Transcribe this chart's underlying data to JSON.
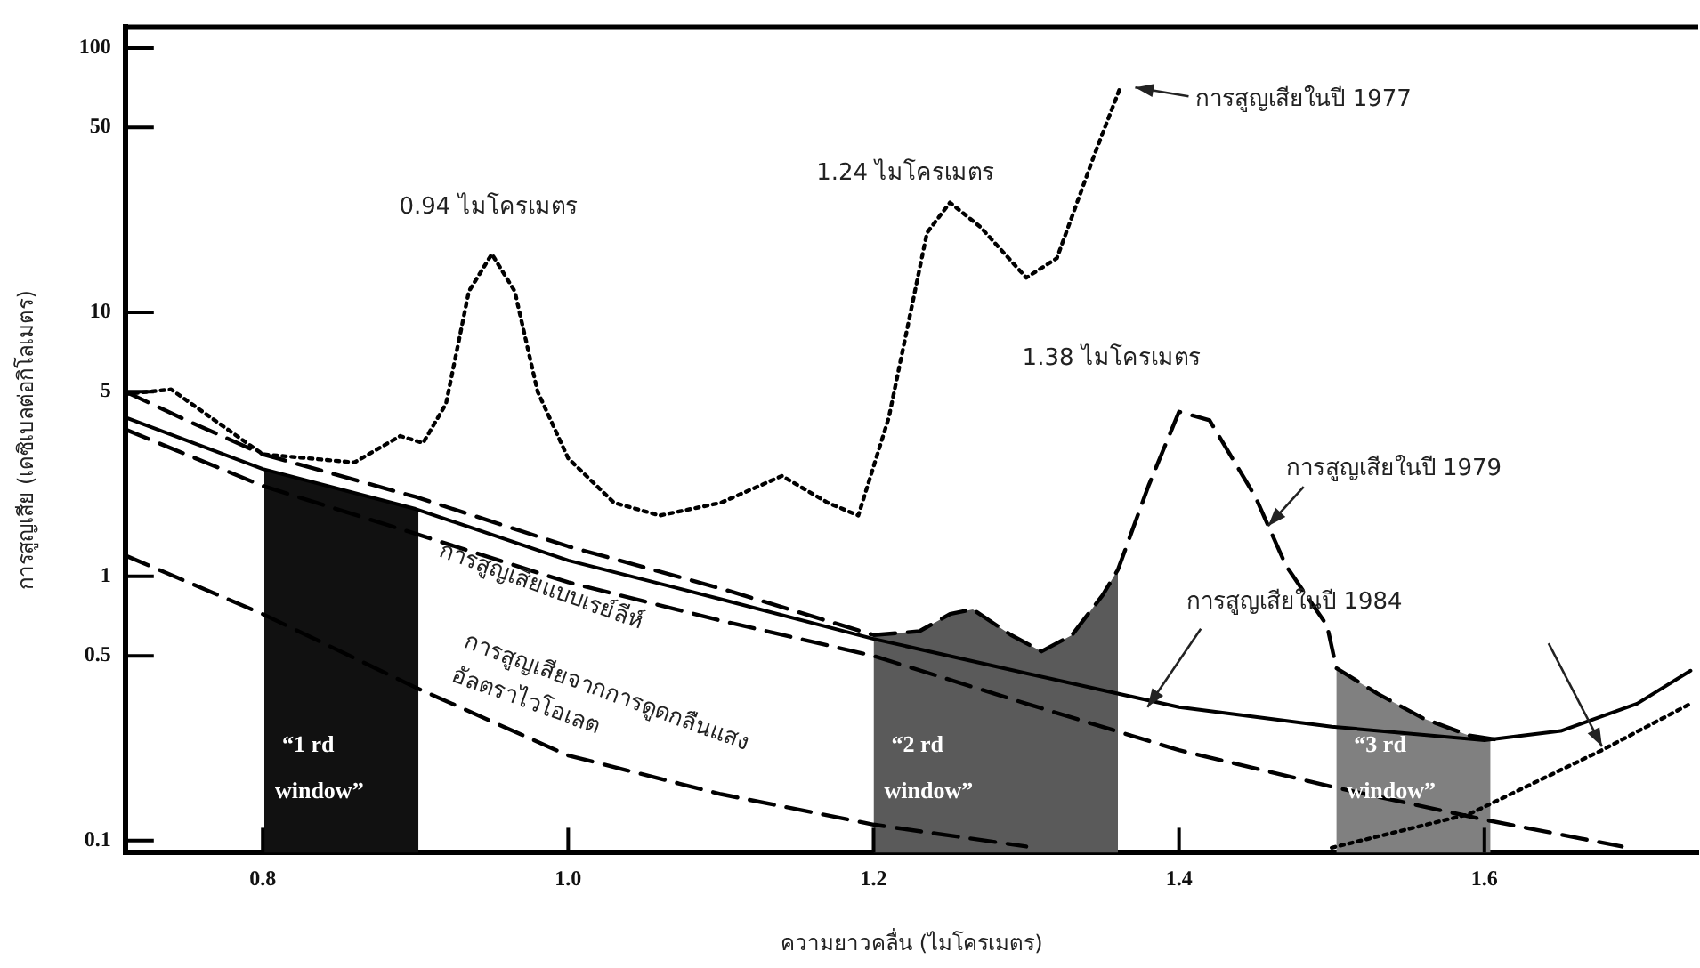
{
  "chart_data": {
    "type": "line",
    "xlabel": "ความยาวคลื่น (ไมโครเมตร)",
    "ylabel": "การสูญเสีย (เดซิเบลต่อกิโลเมตร)",
    "log": "y",
    "xlim": [
      0.71,
      1.74
    ],
    "ylim": [
      0.09,
      120
    ],
    "xticks": [
      0.8,
      {
        "value": 1,
        "label": "1.0"
      },
      1.2,
      1.4,
      1.6
    ],
    "yticks": [
      0.1,
      0.5,
      1,
      5,
      10,
      50,
      100
    ],
    "grid": false,
    "legend": false,
    "marker": "none",
    "series": [
      {
        "type": "area",
        "name": "“1 rd window”",
        "color": "#111111",
        "x": [
          0.801,
          0.85,
          0.902
        ],
        "values": [
          2.55,
          2.15,
          1.8
        ]
      },
      {
        "type": "area",
        "name": "“2 rd window”",
        "color": "#5a5a5a",
        "x": [
          1.2,
          1.23,
          1.25,
          1.265,
          1.29,
          1.31,
          1.33,
          1.35,
          1.36
        ],
        "values": [
          0.6,
          0.62,
          0.72,
          0.75,
          0.6,
          0.52,
          0.6,
          0.85,
          1.06
        ]
      },
      {
        "type": "area",
        "name": "“3 rd window”",
        "color": "#808080",
        "x": [
          1.503,
          1.53,
          1.56,
          1.59,
          1.604
        ],
        "values": [
          0.45,
          0.36,
          0.29,
          0.25,
          0.24
        ]
      },
      {
        "line_style": "dotted",
        "color": "#000000",
        "x": [
          0.71,
          0.74,
          0.8,
          0.86,
          0.89,
          0.905,
          0.92,
          0.935,
          0.95,
          0.965,
          0.98,
          1.0,
          1.03,
          1.06,
          1.1,
          1.14,
          1.17,
          1.19,
          1.21,
          1.235,
          1.25,
          1.27,
          1.3,
          1.32,
          1.345,
          1.362
        ],
        "values": [
          4.9,
          5.1,
          2.9,
          2.7,
          3.4,
          3.2,
          4.5,
          12,
          16.6,
          12,
          5,
          2.8,
          1.9,
          1.7,
          1.9,
          2.4,
          1.9,
          1.7,
          4,
          20,
          26,
          21,
          13.5,
          16,
          40,
          72
        ]
      },
      {
        "line_style": "dashed",
        "color": "#000000",
        "x": [
          0.71,
          0.75,
          0.8,
          0.9,
          1.0,
          1.1,
          1.2,
          1.23,
          1.25,
          1.265,
          1.29,
          1.31,
          1.33,
          1.35,
          1.36,
          1.38,
          1.4,
          1.42,
          1.45,
          1.47,
          1.497,
          1.503,
          1.53,
          1.56,
          1.59,
          1.61
        ],
        "values": [
          5.0,
          3.9,
          2.9,
          2.0,
          1.3,
          0.9,
          0.6,
          0.62,
          0.72,
          0.75,
          0.6,
          0.52,
          0.6,
          0.85,
          1.06,
          2.2,
          4.2,
          3.9,
          2.0,
          1.1,
          0.65,
          0.45,
          0.36,
          0.29,
          0.25,
          0.24
        ]
      },
      {
        "line_style": "solid",
        "color": "#000000",
        "x": [
          0.71,
          0.8,
          0.9,
          1.0,
          1.1,
          1.2,
          1.3,
          1.4,
          1.5,
          1.6,
          1.65,
          1.7,
          1.735
        ],
        "values": [
          4.0,
          2.55,
          1.8,
          1.15,
          0.82,
          0.58,
          0.43,
          0.32,
          0.27,
          0.24,
          0.26,
          0.33,
          0.44
        ]
      },
      {
        "line_style": "dashed",
        "color": "#000000",
        "x": [
          0.71,
          0.8,
          0.9,
          1.0,
          1.1,
          1.2,
          1.3,
          1.4,
          1.5,
          1.6,
          1.69
        ],
        "values": [
          3.6,
          2.2,
          1.45,
          0.95,
          0.68,
          0.5,
          0.33,
          0.22,
          0.16,
          0.12,
          0.095
        ]
      },
      {
        "line_style": "dashed",
        "color": "#000000",
        "x": [
          0.71,
          0.8,
          0.9,
          1.0,
          1.1,
          1.2,
          1.3
        ],
        "values": [
          1.2,
          0.72,
          0.38,
          0.21,
          0.15,
          0.115,
          0.095
        ]
      },
      {
        "line_style": "dotted",
        "color": "#000000",
        "x": [
          1.5,
          1.59,
          1.677,
          1.735
        ],
        "values": [
          0.094,
          0.126,
          0.22,
          0.33
        ]
      }
    ],
    "annotations": [
      {
        "text": "0.94 ไมโครเมตร",
        "x": 0.95,
        "y": 16.6
      },
      {
        "text": "1.24 ไมโครเมตร",
        "x": 1.25,
        "y": 26
      },
      {
        "text": "1.38 ไมโครเมตร",
        "x": 1.4,
        "y": 4.2
      },
      {
        "text": "การสูญเสียในปี 1977",
        "x": 1.362,
        "y": 72
      },
      {
        "text": "การสูญเสียในปี 1979",
        "x": 1.456,
        "y": 1.6
      },
      {
        "text": "การสูญเสียในปี 1984",
        "x": 1.377,
        "y": 0.33
      },
      {
        "text": "การสูญเสียแบบเรย์ลีห์",
        "x": 1.0,
        "y": 0.95
      },
      {
        "text": "การสูญเสียจากการดูดกลืนแสง\nอัลตราไวโอเลต",
        "x": 1.0,
        "y": 0.21
      }
    ]
  }
}
